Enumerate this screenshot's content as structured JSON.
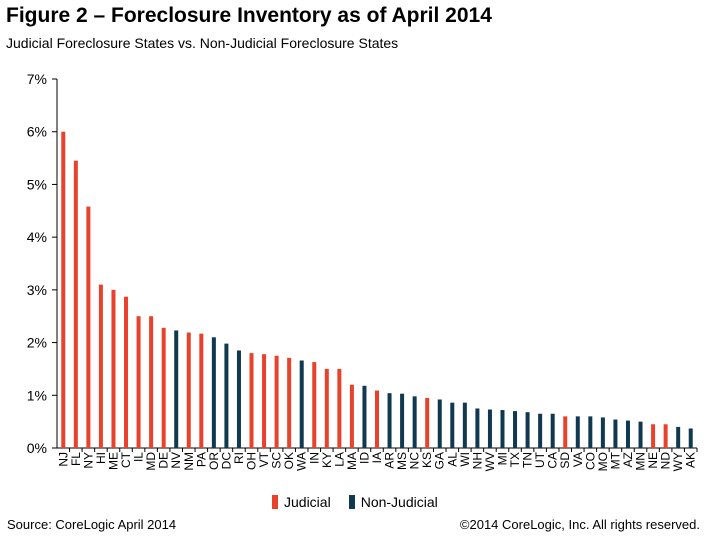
{
  "header": {
    "title": "Figure 2 – Foreclosure Inventory as of April 2014",
    "subtitle": "Judicial Foreclosure States vs. Non-Judicial Foreclosure States"
  },
  "footer": {
    "source": "Source: CoreLogic  April 2014",
    "copyright": "©2014 CoreLogic, Inc. All rights reserved."
  },
  "colors": {
    "judicial": "#e8412c",
    "non_judicial": "#10384f",
    "axis": "#000000"
  },
  "chart_data": {
    "type": "bar",
    "title": "Figure 2 – Foreclosure Inventory as of April 2014",
    "subtitle": "Judicial Foreclosure States vs. Non-Judicial Foreclosure States",
    "xlabel": "",
    "ylabel": "",
    "ylim": [
      0,
      7
    ],
    "y_ticks": [
      "0%",
      "1%",
      "2%",
      "3%",
      "4%",
      "5%",
      "6%",
      "7%"
    ],
    "grid": false,
    "legend_position": "bottom-center",
    "legend": [
      {
        "name": "Judicial",
        "color": "#e8412c"
      },
      {
        "name": "Non-Judicial",
        "color": "#10384f"
      }
    ],
    "categories": [
      "NJ",
      "FL",
      "NY",
      "HI",
      "ME",
      "CT",
      "IL",
      "MD",
      "DE",
      "NV",
      "NM",
      "PA",
      "OR",
      "DC",
      "RI",
      "OH",
      "VT",
      "SC",
      "OK",
      "WA",
      "IN",
      "KY",
      "LA",
      "MA",
      "ID",
      "IA",
      "AR",
      "MS",
      "NC",
      "KS",
      "GA",
      "AL",
      "WI",
      "NH",
      "WV",
      "MI",
      "TX",
      "TN",
      "UT",
      "CA",
      "SD",
      "VA",
      "CO",
      "MO",
      "MT",
      "AZ",
      "MN",
      "NE",
      "ND",
      "WY",
      "AK"
    ],
    "values": [
      6.0,
      5.45,
      4.58,
      3.1,
      3.0,
      2.87,
      2.5,
      2.5,
      2.28,
      2.23,
      2.19,
      2.17,
      2.1,
      1.98,
      1.85,
      1.8,
      1.78,
      1.75,
      1.71,
      1.66,
      1.63,
      1.5,
      1.5,
      1.2,
      1.18,
      1.09,
      1.04,
      1.03,
      0.98,
      0.95,
      0.92,
      0.86,
      0.86,
      0.75,
      0.73,
      0.72,
      0.7,
      0.68,
      0.65,
      0.65,
      0.6,
      0.6,
      0.6,
      0.58,
      0.54,
      0.52,
      0.5,
      0.45,
      0.45,
      0.4,
      0.37
    ],
    "groups": [
      "Judicial",
      "Judicial",
      "Judicial",
      "Judicial",
      "Judicial",
      "Judicial",
      "Judicial",
      "Judicial",
      "Judicial",
      "Non-Judicial",
      "Judicial",
      "Judicial",
      "Non-Judicial",
      "Non-Judicial",
      "Non-Judicial",
      "Judicial",
      "Judicial",
      "Judicial",
      "Judicial",
      "Non-Judicial",
      "Judicial",
      "Judicial",
      "Judicial",
      "Judicial",
      "Non-Judicial",
      "Judicial",
      "Non-Judicial",
      "Non-Judicial",
      "Non-Judicial",
      "Judicial",
      "Non-Judicial",
      "Non-Judicial",
      "Non-Judicial",
      "Non-Judicial",
      "Non-Judicial",
      "Non-Judicial",
      "Non-Judicial",
      "Non-Judicial",
      "Non-Judicial",
      "Non-Judicial",
      "Judicial",
      "Non-Judicial",
      "Non-Judicial",
      "Non-Judicial",
      "Non-Judicial",
      "Non-Judicial",
      "Non-Judicial",
      "Judicial",
      "Judicial",
      "Non-Judicial",
      "Non-Judicial"
    ]
  }
}
